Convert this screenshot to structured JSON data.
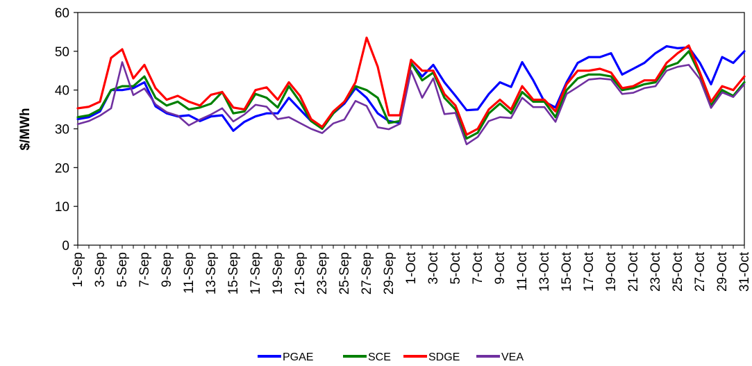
{
  "chart_data": {
    "type": "line",
    "title": "",
    "xlabel": "",
    "ylabel": "$/MWh",
    "ylim": [
      0,
      60
    ],
    "yticks": [
      0,
      10,
      20,
      30,
      40,
      50,
      60
    ],
    "grid": false,
    "legend_position": "bottom",
    "categories": [
      "1-Sep",
      "2-Sep",
      "3-Sep",
      "4-Sep",
      "5-Sep",
      "6-Sep",
      "7-Sep",
      "8-Sep",
      "9-Sep",
      "10-Sep",
      "11-Sep",
      "12-Sep",
      "13-Sep",
      "14-Sep",
      "15-Sep",
      "16-Sep",
      "17-Sep",
      "18-Sep",
      "19-Sep",
      "20-Sep",
      "21-Sep",
      "22-Sep",
      "23-Sep",
      "24-Sep",
      "25-Sep",
      "26-Sep",
      "27-Sep",
      "28-Sep",
      "29-Sep",
      "30-Sep",
      "1-Oct",
      "2-Oct",
      "3-Oct",
      "4-Oct",
      "5-Oct",
      "6-Oct",
      "7-Oct",
      "8-Oct",
      "9-Oct",
      "10-Oct",
      "11-Oct",
      "12-Oct",
      "13-Oct",
      "14-Oct",
      "15-Oct",
      "16-Oct",
      "17-Oct",
      "18-Oct",
      "19-Oct",
      "20-Oct",
      "21-Oct",
      "22-Oct",
      "23-Oct",
      "24-Oct",
      "25-Oct",
      "26-Oct",
      "27-Oct",
      "28-Oct",
      "29-Oct",
      "30-Oct",
      "31-Oct"
    ],
    "tick_labels": [
      "1-Sep",
      "3-Sep",
      "5-Sep",
      "7-Sep",
      "9-Sep",
      "11-Sep",
      "13-Sep",
      "15-Sep",
      "17-Sep",
      "19-Sep",
      "21-Sep",
      "23-Sep",
      "25-Sep",
      "27-Sep",
      "29-Sep",
      "1-Oct",
      "3-Oct",
      "5-Oct",
      "7-Oct",
      "9-Oct",
      "11-Oct",
      "13-Oct",
      "15-Oct",
      "17-Oct",
      "19-Oct",
      "21-Oct",
      "23-Oct",
      "25-Oct",
      "27-Oct",
      "29-Oct",
      "31-Oct"
    ],
    "series": [
      {
        "name": "PGAE",
        "color": "#0000ff",
        "values": [
          32.5,
          33.0,
          34.5,
          40.0,
          40.0,
          40.5,
          42.0,
          35.8,
          34.0,
          33.2,
          33.5,
          32.0,
          33.2,
          33.5,
          29.5,
          31.8,
          33.2,
          34.0,
          34.0,
          38.0,
          35.0,
          32.0,
          30.5,
          34.0,
          36.5,
          40.5,
          38.0,
          34.0,
          32.0,
          31.5,
          47.0,
          43.5,
          46.5,
          42.0,
          38.5,
          34.8,
          35.0,
          39.0,
          42.0,
          40.8,
          47.2,
          42.5,
          37.0,
          35.5,
          42.0,
          47.0,
          48.5,
          48.5,
          49.5,
          44.0,
          45.5,
          47.0,
          49.5,
          51.3,
          50.8,
          51.0,
          47.0,
          41.5,
          48.5,
          47.0,
          50.0
        ]
      },
      {
        "name": "SCE",
        "color": "#008000",
        "values": [
          33.0,
          33.5,
          35.0,
          40.0,
          41.0,
          41.0,
          43.5,
          38.0,
          36.0,
          37.0,
          35.0,
          35.5,
          36.5,
          39.5,
          34.0,
          34.5,
          39.0,
          38.0,
          35.5,
          41.0,
          37.0,
          32.0,
          30.0,
          34.0,
          37.0,
          41.0,
          40.0,
          38.0,
          31.5,
          32.0,
          47.0,
          42.5,
          44.5,
          38.0,
          35.0,
          27.5,
          29.0,
          34.0,
          36.5,
          34.0,
          39.5,
          37.0,
          37.0,
          33.0,
          40.0,
          43.0,
          44.0,
          44.0,
          43.5,
          40.0,
          40.5,
          41.5,
          42.0,
          46.0,
          47.0,
          50.0,
          44.0,
          36.0,
          40.0,
          38.5,
          42.0
        ]
      },
      {
        "name": "SDGE",
        "color": "#ff0000",
        "values": [
          35.3,
          35.7,
          37.0,
          48.3,
          50.5,
          43.0,
          46.5,
          40.5,
          37.5,
          38.5,
          37.0,
          36.0,
          38.8,
          39.5,
          35.5,
          35.0,
          40.0,
          40.7,
          37.5,
          42.0,
          38.5,
          32.5,
          30.5,
          34.5,
          37.0,
          42.0,
          53.5,
          46.0,
          33.5,
          33.5,
          47.8,
          45.0,
          45.0,
          39.0,
          36.0,
          28.5,
          30.0,
          35.0,
          37.5,
          35.0,
          41.0,
          37.5,
          37.5,
          34.5,
          41.5,
          45.0,
          45.0,
          45.5,
          44.5,
          40.5,
          41.0,
          42.5,
          42.5,
          47.0,
          49.5,
          51.5,
          44.5,
          37.0,
          41.0,
          40.0,
          43.5
        ]
      },
      {
        "name": "VEA",
        "color": "#7030a0",
        "values": [
          31.2,
          32.0,
          33.4,
          35.3,
          47.2,
          38.7,
          40.4,
          36.3,
          34.3,
          33.4,
          30.9,
          32.4,
          33.7,
          35.3,
          31.9,
          33.7,
          36.2,
          35.7,
          32.5,
          33.0,
          31.5,
          30.0,
          28.9,
          31.4,
          32.4,
          37.2,
          35.9,
          30.4,
          29.9,
          31.3,
          45.0,
          38.0,
          43.0,
          33.8,
          34.1,
          26.0,
          27.9,
          32.0,
          33.0,
          32.8,
          38.0,
          35.6,
          35.6,
          31.8,
          39.0,
          40.8,
          42.7,
          43.0,
          42.7,
          39.0,
          39.3,
          40.5,
          41.0,
          45.0,
          46.0,
          46.5,
          42.8,
          35.4,
          39.4,
          38.2,
          41.5
        ]
      }
    ]
  }
}
